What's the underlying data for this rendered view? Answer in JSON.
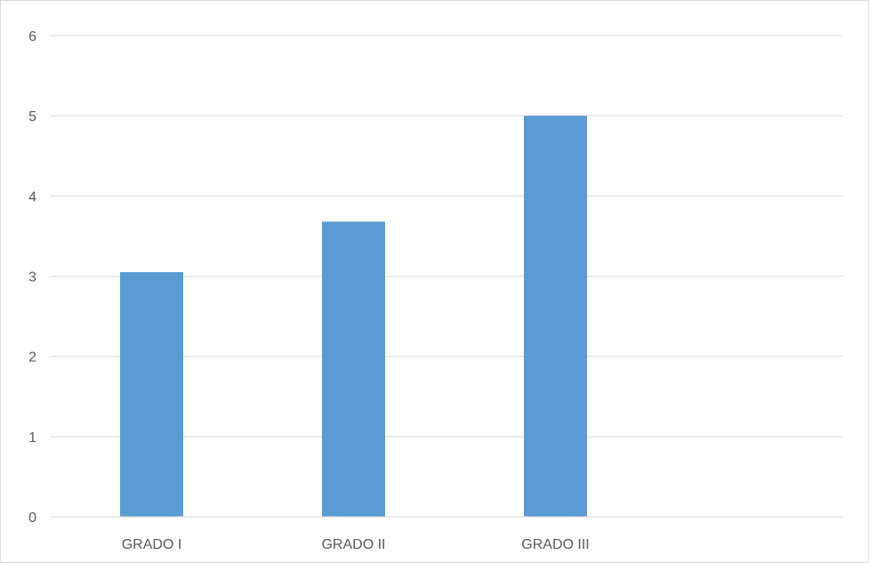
{
  "chart_data": {
    "type": "bar",
    "categories": [
      "GRADO I",
      "GRADO II",
      "GRADO III"
    ],
    "series": [
      {
        "values": [
          3.05,
          3.68,
          5.0
        ]
      }
    ],
    "ylim": [
      0,
      6
    ],
    "yticks": [
      0,
      1,
      2,
      3,
      4,
      5,
      6
    ],
    "grid": true,
    "legend": "none",
    "colors": {
      "bar": "#5b9bd5",
      "grid": "#d9d9d9",
      "axis": "#d9d9d9",
      "text": "#595959"
    }
  }
}
